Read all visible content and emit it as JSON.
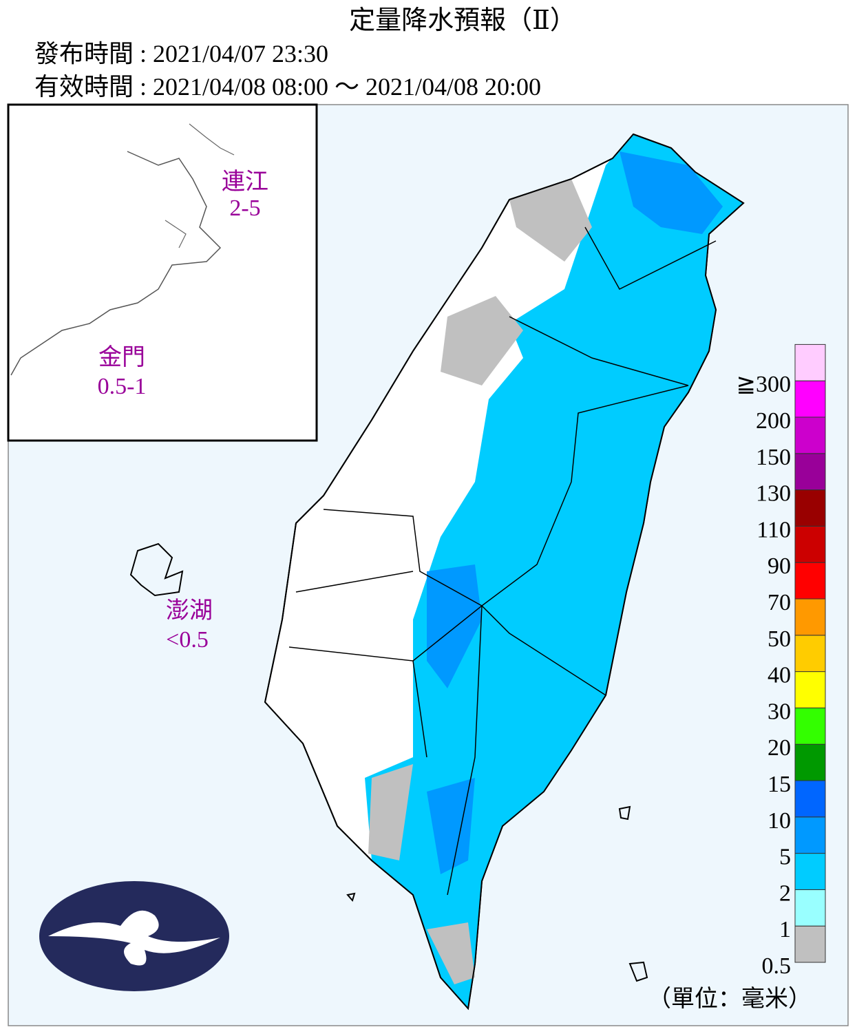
{
  "header": {
    "title": "定量降水預報（Ⅱ）",
    "issued": "發布時間 : 2021/04/07 23:30",
    "valid": "有效時間 : 2021/04/08 08:00 ～ 2021/04/08 20:00"
  },
  "islands": [
    {
      "name": "連江",
      "amount": "2-5"
    },
    {
      "name": "金門",
      "amount": "0.5-1"
    },
    {
      "name": "澎湖",
      "amount": "<0.5"
    }
  ],
  "legend": {
    "labels": [
      "0.5",
      "1",
      "2",
      "5",
      "10",
      "15",
      "20",
      "30",
      "40",
      "50",
      "70",
      "90",
      "110",
      "130",
      "150",
      "200",
      "≧300"
    ],
    "colors": [
      "#c0c0c0",
      "#99ffff",
      "#00ccff",
      "#0099ff",
      "#0066ff",
      "#009900",
      "#33ff00",
      "#ffff00",
      "#ffcc00",
      "#ff9900",
      "#ff0000",
      "#cc0000",
      "#990000",
      "#990099",
      "#cc00cc",
      "#ff00ff",
      "#ffccff"
    ],
    "unit": "（單位：毫米）"
  }
}
